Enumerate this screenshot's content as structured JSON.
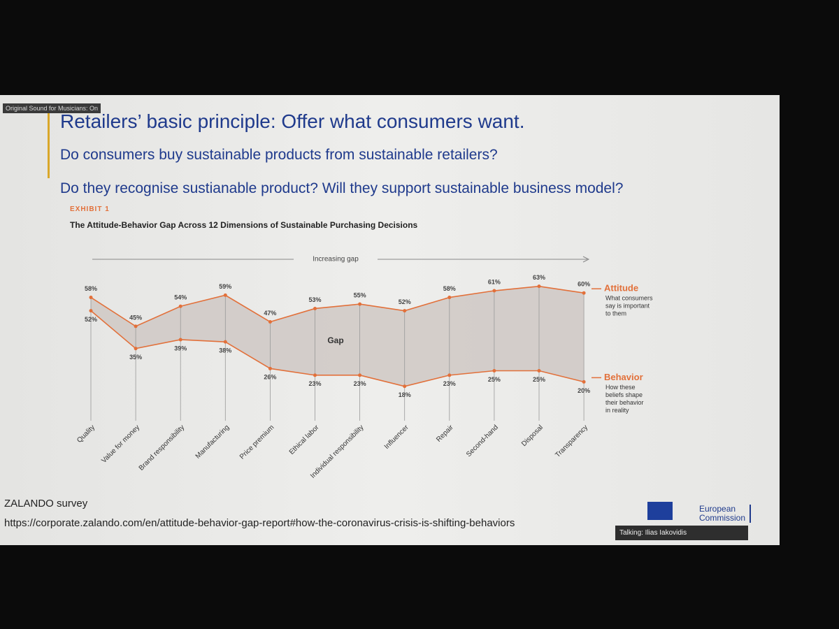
{
  "overlay": {
    "sound": "Original Sound for Musicians: On",
    "talking": "Talking: Ilias Iakovidis"
  },
  "slide": {
    "title": "Retailers’ basic principle: Offer what consumers want.",
    "questions": [
      "Do consumers buy sustainable products from sustainable retailers?",
      "Do they recognise sustianable product? Will they support sustainable business model?"
    ],
    "exhibit": "EXHIBIT 1",
    "source": "ZALANDO survey",
    "url": "https://corporate.zalando.com/en/attitude-behavior-gap-report#how-the-coronavirus-crisis-is-shifting-behaviors",
    "logo": [
      "European",
      "Commission"
    ]
  },
  "chart_data": {
    "type": "line",
    "title": "The Attitude-Behavior Gap Across 12 Dimensions of Sustainable Purchasing Decisions",
    "annotations": {
      "trend": "Increasing gap",
      "gap": "Gap"
    },
    "categories": [
      "Quality",
      "Value for money",
      "Brand responsibility",
      "Manufacturing",
      "Price premium",
      "Ethical labor",
      "Individual responsibility",
      "Influencer",
      "Repair",
      "Second-hand",
      "Disposal",
      "Transparency"
    ],
    "series": [
      {
        "name": "Attitude",
        "color": "#e2703a",
        "description": [
          "What consumers",
          "say is important",
          "to them"
        ],
        "values": [
          58,
          45,
          54,
          59,
          47,
          53,
          55,
          52,
          58,
          61,
          63,
          60
        ],
        "value_labels": [
          "58%",
          "45%",
          "54%",
          "59%",
          "47%",
          "53%",
          "55%",
          "52%",
          "58%",
          "61%",
          "63%",
          "60%"
        ]
      },
      {
        "name": "Behavior",
        "color": "#e2703a",
        "description": [
          "How these",
          "beliefs shape",
          "their behavior",
          "in reality"
        ],
        "values": [
          52,
          35,
          39,
          38,
          26,
          23,
          23,
          18,
          23,
          25,
          25,
          20
        ],
        "value_labels": [
          "52%",
          "35%",
          "39%",
          "38%",
          "26%",
          "23%",
          "23%",
          "18%",
          "23%",
          "25%",
          "25%",
          "20%"
        ]
      }
    ]
  }
}
